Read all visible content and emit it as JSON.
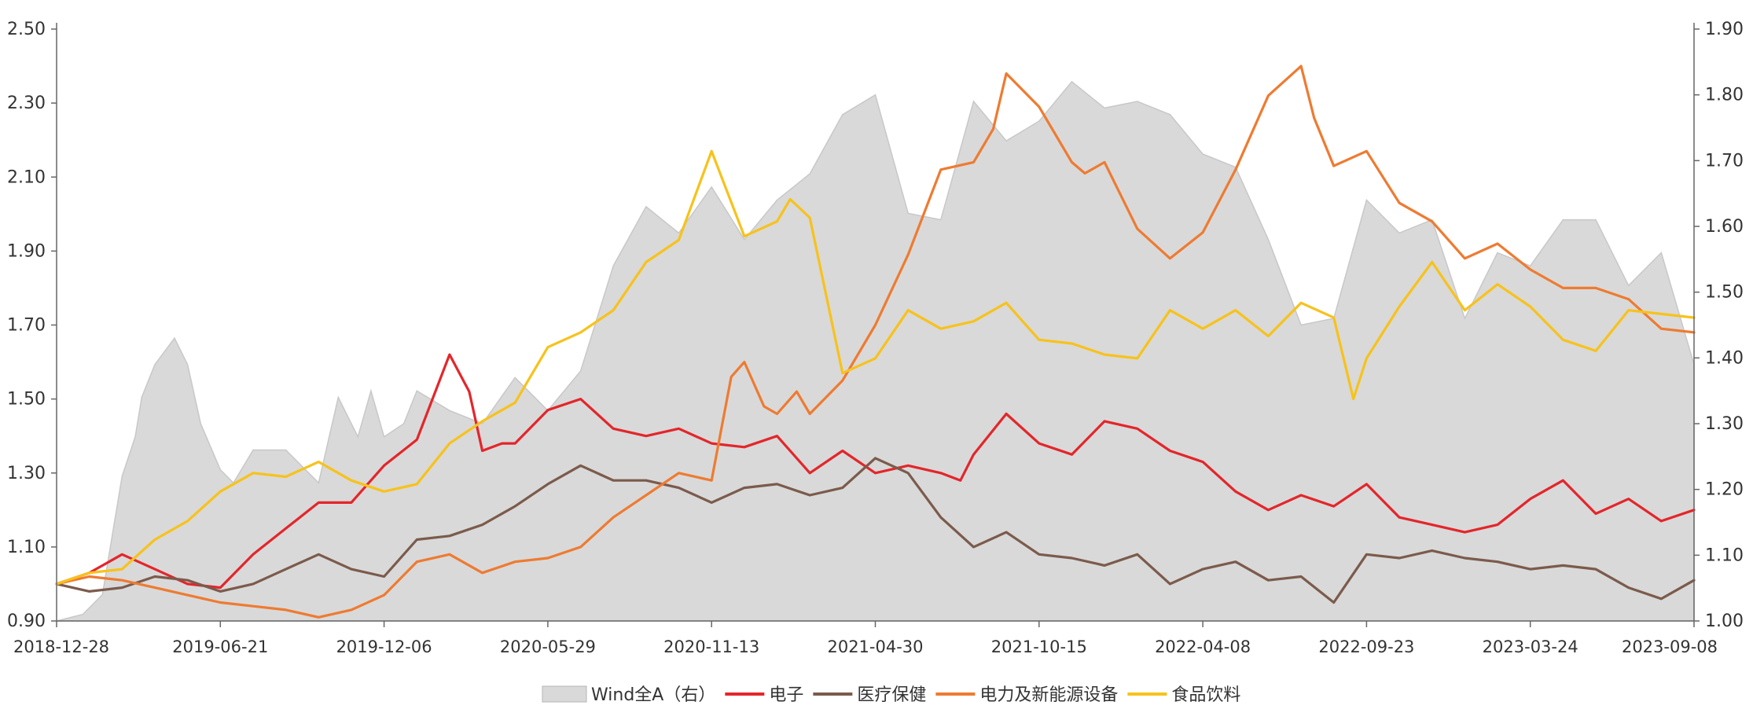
{
  "chart_data": {
    "type": "line",
    "x_ticks": [
      "2018-12-28",
      "2019-06-21",
      "2019-12-06",
      "2020-05-29",
      "2020-11-13",
      "2021-04-30",
      "2021-10-15",
      "2022-04-08",
      "2022-09-23",
      "2023-03-24",
      "2023-09-08"
    ],
    "y_left": {
      "ticks": [
        "0.90",
        "1.10",
        "1.30",
        "1.50",
        "1.70",
        "1.90",
        "2.10",
        "2.30",
        "2.50"
      ],
      "range": [
        0.9,
        2.5
      ]
    },
    "y_right": {
      "ticks": [
        "1.00",
        "1.10",
        "1.20",
        "1.30",
        "1.40",
        "1.50",
        "1.60",
        "1.70",
        "1.80",
        "1.90"
      ],
      "range": [
        1.0,
        1.9
      ]
    },
    "legend_position": "bottom",
    "series": [
      {
        "name": "Wind全A（右）",
        "kind": "area",
        "axis": "right",
        "color": "#d9d9d9",
        "x": [
          0,
          4,
          7,
          10,
          12,
          13,
          15,
          18,
          20,
          22,
          25,
          27,
          30,
          35,
          40,
          43,
          46,
          48,
          50,
          53,
          55,
          60,
          65,
          70,
          75,
          80,
          85,
          90,
          95,
          100,
          105,
          110,
          115,
          120,
          125,
          130,
          135,
          140,
          145,
          150,
          155,
          160,
          165,
          170,
          175,
          180,
          185,
          190,
          195,
          200,
          205,
          210,
          215,
          220,
          225,
          230,
          235,
          240,
          245,
          250
        ],
        "y": [
          1.0,
          1.01,
          1.04,
          1.22,
          1.28,
          1.34,
          1.39,
          1.43,
          1.39,
          1.3,
          1.23,
          1.21,
          1.26,
          1.26,
          1.21,
          1.34,
          1.28,
          1.35,
          1.28,
          1.3,
          1.35,
          1.32,
          1.3,
          1.37,
          1.32,
          1.38,
          1.54,
          1.63,
          1.59,
          1.66,
          1.58,
          1.64,
          1.68,
          1.77,
          1.8,
          1.62,
          1.61,
          1.79,
          1.73,
          1.76,
          1.82,
          1.78,
          1.79,
          1.77,
          1.71,
          1.69,
          1.58,
          1.45,
          1.46,
          1.64,
          1.59,
          1.61,
          1.46,
          1.56,
          1.54,
          1.61,
          1.61,
          1.51,
          1.56,
          1.39
        ]
      },
      {
        "name": "电子",
        "kind": "line",
        "axis": "left",
        "color": "#e3262b",
        "x": [
          0,
          5,
          10,
          15,
          20,
          25,
          30,
          35,
          40,
          45,
          50,
          55,
          60,
          63,
          65,
          68,
          70,
          75,
          80,
          85,
          90,
          95,
          100,
          105,
          110,
          115,
          120,
          125,
          130,
          135,
          138,
          140,
          145,
          150,
          155,
          160,
          165,
          170,
          175,
          180,
          185,
          190,
          195,
          200,
          205,
          210,
          215,
          220,
          225,
          230,
          235,
          240,
          245,
          250
        ],
        "y": [
          1.0,
          1.03,
          1.08,
          1.04,
          1.0,
          0.99,
          1.08,
          1.15,
          1.22,
          1.22,
          1.32,
          1.39,
          1.62,
          1.52,
          1.36,
          1.38,
          1.38,
          1.47,
          1.5,
          1.42,
          1.4,
          1.42,
          1.38,
          1.37,
          1.4,
          1.3,
          1.36,
          1.3,
          1.32,
          1.3,
          1.28,
          1.35,
          1.46,
          1.38,
          1.35,
          1.44,
          1.42,
          1.36,
          1.33,
          1.25,
          1.2,
          1.24,
          1.21,
          1.27,
          1.18,
          1.16,
          1.14,
          1.16,
          1.23,
          1.28,
          1.19,
          1.23,
          1.17,
          1.2
        ]
      },
      {
        "name": "医疗保健",
        "kind": "line",
        "axis": "left",
        "color": "#7b5b4c",
        "x": [
          0,
          5,
          10,
          15,
          20,
          25,
          30,
          35,
          40,
          45,
          50,
          55,
          60,
          65,
          70,
          75,
          80,
          85,
          90,
          95,
          100,
          105,
          110,
          115,
          120,
          125,
          130,
          135,
          140,
          145,
          150,
          155,
          160,
          165,
          170,
          175,
          180,
          185,
          190,
          195,
          200,
          205,
          210,
          215,
          220,
          225,
          230,
          235,
          240,
          245,
          250
        ],
        "y": [
          1.0,
          0.98,
          0.99,
          1.02,
          1.01,
          0.98,
          1.0,
          1.04,
          1.08,
          1.04,
          1.02,
          1.12,
          1.13,
          1.16,
          1.21,
          1.27,
          1.32,
          1.28,
          1.28,
          1.26,
          1.22,
          1.26,
          1.27,
          1.24,
          1.26,
          1.34,
          1.3,
          1.18,
          1.1,
          1.14,
          1.08,
          1.07,
          1.05,
          1.08,
          1.0,
          1.04,
          1.06,
          1.01,
          1.02,
          0.95,
          1.08,
          1.07,
          1.09,
          1.07,
          1.06,
          1.04,
          1.05,
          1.04,
          0.99,
          0.96,
          1.01
        ]
      },
      {
        "name": "电力及新能源设备",
        "kind": "line",
        "axis": "left",
        "color": "#ee7b31",
        "x": [
          0,
          5,
          10,
          15,
          20,
          25,
          30,
          35,
          40,
          45,
          50,
          55,
          60,
          65,
          70,
          75,
          80,
          85,
          90,
          95,
          100,
          103,
          105,
          108,
          110,
          113,
          115,
          120,
          125,
          130,
          135,
          140,
          143,
          145,
          150,
          155,
          157,
          160,
          165,
          170,
          175,
          180,
          185,
          190,
          192,
          195,
          200,
          205,
          210,
          215,
          220,
          225,
          230,
          235,
          240,
          245,
          250
        ],
        "y": [
          1.0,
          1.02,
          1.01,
          0.99,
          0.97,
          0.95,
          0.94,
          0.93,
          0.91,
          0.93,
          0.97,
          1.06,
          1.08,
          1.03,
          1.06,
          1.07,
          1.1,
          1.18,
          1.24,
          1.3,
          1.28,
          1.56,
          1.6,
          1.48,
          1.46,
          1.52,
          1.46,
          1.55,
          1.7,
          1.89,
          2.12,
          2.14,
          2.23,
          2.38,
          2.29,
          2.14,
          2.11,
          2.14,
          1.96,
          1.88,
          1.95,
          2.12,
          2.32,
          2.4,
          2.26,
          2.13,
          2.17,
          2.03,
          1.98,
          1.88,
          1.92,
          1.85,
          1.8,
          1.8,
          1.77,
          1.69,
          1.68
        ]
      },
      {
        "name": "食品饮料",
        "kind": "line",
        "axis": "left",
        "color": "#f7c21b",
        "x": [
          0,
          5,
          10,
          15,
          20,
          25,
          30,
          35,
          40,
          45,
          50,
          55,
          60,
          65,
          70,
          75,
          80,
          85,
          90,
          95,
          100,
          105,
          110,
          112,
          115,
          120,
          125,
          130,
          135,
          140,
          145,
          150,
          155,
          160,
          165,
          170,
          175,
          180,
          185,
          190,
          195,
          198,
          200,
          205,
          210,
          215,
          220,
          225,
          230,
          235,
          240,
          245,
          250
        ],
        "y": [
          1.0,
          1.03,
          1.04,
          1.12,
          1.17,
          1.25,
          1.3,
          1.29,
          1.33,
          1.28,
          1.25,
          1.27,
          1.38,
          1.44,
          1.49,
          1.64,
          1.68,
          1.74,
          1.87,
          1.93,
          2.17,
          1.94,
          1.98,
          2.04,
          1.99,
          1.57,
          1.61,
          1.74,
          1.69,
          1.71,
          1.76,
          1.66,
          1.65,
          1.62,
          1.61,
          1.74,
          1.69,
          1.74,
          1.67,
          1.76,
          1.72,
          1.5,
          1.61,
          1.75,
          1.87,
          1.74,
          1.81,
          1.75,
          1.66,
          1.63,
          1.74,
          1.73,
          1.72
        ]
      }
    ],
    "x_count": 250
  }
}
